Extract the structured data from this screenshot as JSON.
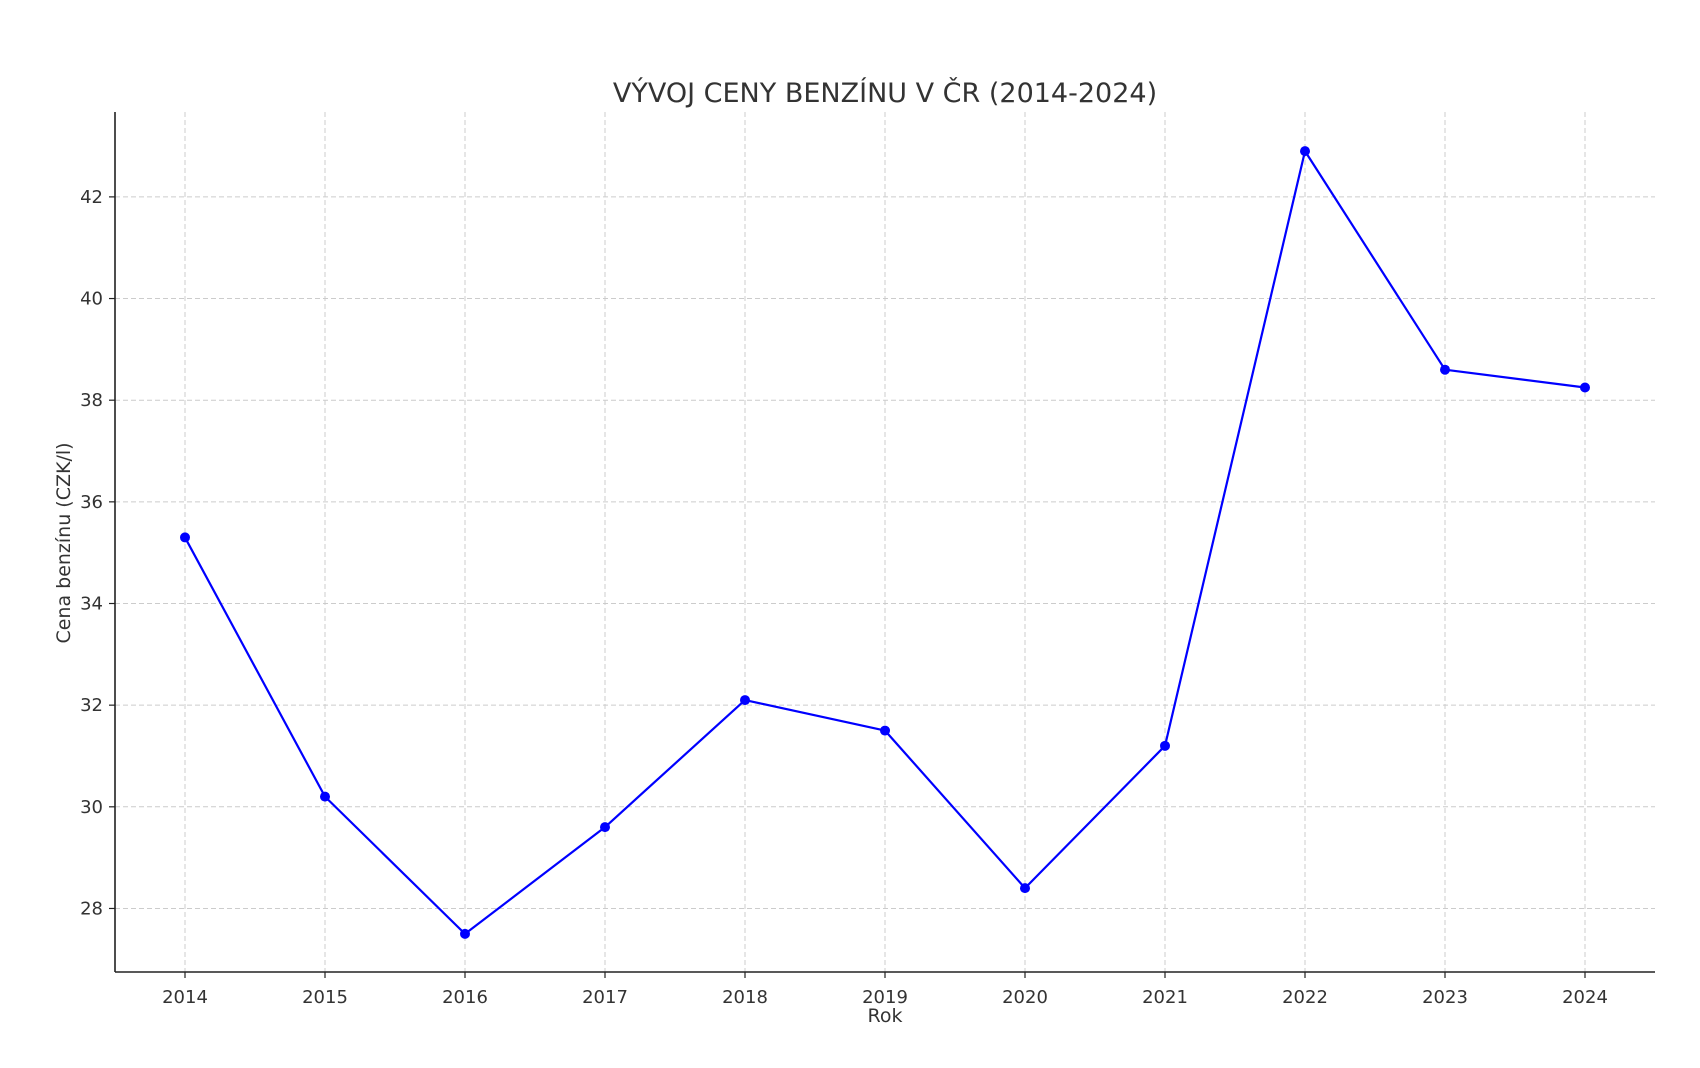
{
  "chart_data": {
    "type": "line",
    "title": "VÝVOJ CENY BENZÍNU V ČR (2014-2024)",
    "xlabel": "Rok",
    "ylabel": "Cena benzínu (CZK/l)",
    "categories": [
      "2014",
      "2015",
      "2016",
      "2017",
      "2018",
      "2019",
      "2020",
      "2021",
      "2022",
      "2023",
      "2024"
    ],
    "series": [
      {
        "values": [
          35.3,
          30.2,
          27.5,
          29.6,
          32.1,
          31.5,
          28.4,
          31.2,
          42.9,
          38.6,
          38.25
        ],
        "color": "#0000ff"
      }
    ],
    "ylim": [
      26.75,
      43.67
    ],
    "xlim": [
      2013.5,
      2024.5
    ],
    "yticks": [
      "28",
      "30",
      "32",
      "34",
      "36",
      "38",
      "40",
      "42"
    ],
    "grid": true,
    "legend": "none"
  }
}
